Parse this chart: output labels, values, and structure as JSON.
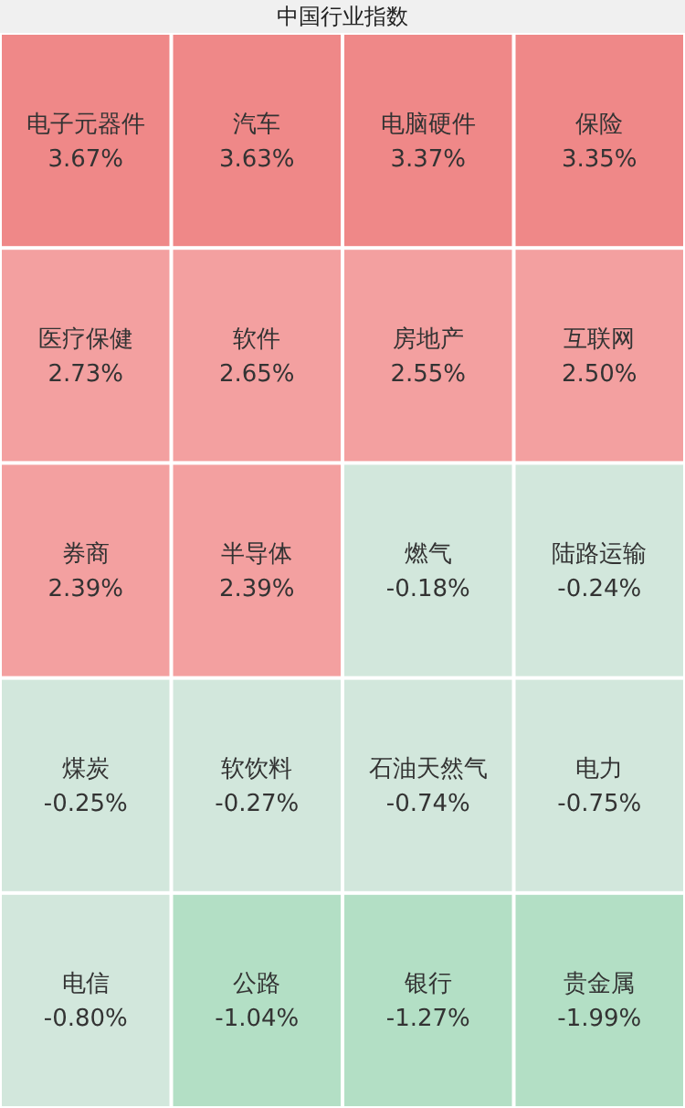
{
  "chart_data": {
    "type": "other",
    "title": "中国行业指数",
    "categories": [
      "电子元器件",
      "汽车",
      "电脑硬件",
      "保险",
      "医疗保健",
      "软件",
      "房地产",
      "互联网",
      "券商",
      "半导体",
      "燃气",
      "陆路运输",
      "煤炭",
      "软饮料",
      "石油天然气",
      "电力",
      "电信",
      "公路",
      "银行",
      "贵金属"
    ],
    "values": [
      3.67,
      3.63,
      3.37,
      3.35,
      2.73,
      2.65,
      2.55,
      2.5,
      2.39,
      2.39,
      -0.18,
      -0.24,
      -0.25,
      -0.27,
      -0.74,
      -0.75,
      -0.8,
      -1.04,
      -1.27,
      -1.99
    ],
    "value_labels": [
      "3.67%",
      "3.63%",
      "3.37%",
      "3.35%",
      "2.73%",
      "2.65%",
      "2.55%",
      "2.50%",
      "2.39%",
      "2.39%",
      "-0.18%",
      "-0.24%",
      "-0.25%",
      "-0.27%",
      "-0.74%",
      "-0.75%",
      "-0.80%",
      "-1.04%",
      "-1.27%",
      "-1.99%"
    ],
    "colors": [
      "#ef8888",
      "#ef8888",
      "#ef8888",
      "#ef8888",
      "#f3a0a0",
      "#f3a0a0",
      "#f3a0a0",
      "#f3a0a0",
      "#f3a0a0",
      "#f3a0a0",
      "#d2e7dc",
      "#d2e7dc",
      "#d2e7dc",
      "#d2e7dc",
      "#d2e7dc",
      "#d2e7dc",
      "#d2e7dc",
      "#b3dfc5",
      "#b3dfc5",
      "#b3dfc5"
    ]
  }
}
